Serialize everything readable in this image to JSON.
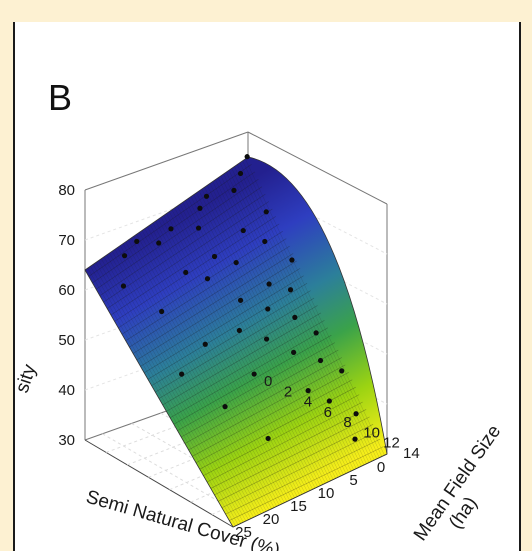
{
  "panel_label": "B",
  "chart_data": {
    "type": "scatter",
    "subtype": "3d-surface-with-points",
    "title": "",
    "z_label": "sity",
    "x_label": "Semi Natural Cover (%)",
    "y_label": "Mean Field Size\n(ha)",
    "xlim": [
      0,
      28
    ],
    "ylim": [
      0,
      14
    ],
    "zlim": [
      30,
      80
    ],
    "x_ticks": [
      "25",
      "20",
      "15",
      "10",
      "5",
      "0"
    ],
    "y_ticks": [
      "0",
      "2",
      "4",
      "6",
      "8",
      "10",
      "12",
      "14"
    ],
    "z_ticks": [
      "30",
      "40",
      "50",
      "60",
      "70",
      "80"
    ],
    "colormap": [
      "#23208f",
      "#2e3ec0",
      "#2c7f9a",
      "#3aa24a",
      "#9bd312",
      "#f6ee1a"
    ],
    "surface_corners": [
      {
        "x": 28,
        "y": 0,
        "z": 64
      },
      {
        "x": 0,
        "y": 0,
        "z": 75
      },
      {
        "x": 0,
        "y": 14,
        "z": 30
      },
      {
        "x": 28,
        "y": 14,
        "z": 30
      }
    ],
    "points": [
      {
        "x": 1,
        "y": 0.5,
        "z": 76
      },
      {
        "x": 3,
        "y": 1,
        "z": 74
      },
      {
        "x": 5,
        "y": 1.5,
        "z": 72
      },
      {
        "x": 8,
        "y": 0.5,
        "z": 71
      },
      {
        "x": 10,
        "y": 1,
        "z": 70
      },
      {
        "x": 12,
        "y": 2,
        "z": 68
      },
      {
        "x": 15,
        "y": 1,
        "z": 68
      },
      {
        "x": 18,
        "y": 1.5,
        "z": 67
      },
      {
        "x": 20,
        "y": 0.5,
        "z": 67
      },
      {
        "x": 23,
        "y": 1,
        "z": 66
      },
      {
        "x": 2,
        "y": 3,
        "z": 68
      },
      {
        "x": 4,
        "y": 4,
        "z": 64
      },
      {
        "x": 6,
        "y": 3,
        "z": 66
      },
      {
        "x": 9,
        "y": 4,
        "z": 62
      },
      {
        "x": 11,
        "y": 3,
        "z": 63
      },
      {
        "x": 14,
        "y": 4,
        "z": 61
      },
      {
        "x": 16,
        "y": 3,
        "z": 62
      },
      {
        "x": 1,
        "y": 5,
        "z": 60
      },
      {
        "x": 3,
        "y": 6,
        "z": 56
      },
      {
        "x": 5,
        "y": 5,
        "z": 57
      },
      {
        "x": 7,
        "y": 6,
        "z": 54
      },
      {
        "x": 10,
        "y": 5,
        "z": 56
      },
      {
        "x": 12,
        "y": 6,
        "z": 52
      },
      {
        "x": 2,
        "y": 8,
        "z": 49
      },
      {
        "x": 4,
        "y": 7,
        "z": 52
      },
      {
        "x": 6,
        "y": 8,
        "z": 47
      },
      {
        "x": 9,
        "y": 7,
        "z": 50
      },
      {
        "x": 1,
        "y": 10,
        "z": 43
      },
      {
        "x": 3,
        "y": 9,
        "z": 45
      },
      {
        "x": 5,
        "y": 11,
        "z": 40
      },
      {
        "x": 2,
        "y": 12,
        "z": 37
      },
      {
        "x": 4,
        "y": 13,
        "z": 34
      },
      {
        "x": 7,
        "y": 10,
        "z": 42
      },
      {
        "x": 13,
        "y": 8,
        "z": 46
      },
      {
        "x": 18,
        "y": 6,
        "z": 52
      },
      {
        "x": 22,
        "y": 4,
        "z": 58
      },
      {
        "x": 25,
        "y": 2,
        "z": 62
      },
      {
        "x": 20,
        "y": 9,
        "z": 44
      },
      {
        "x": 16,
        "y": 11,
        "z": 38
      },
      {
        "x": 24,
        "y": 7,
        "z": 50
      }
    ]
  }
}
